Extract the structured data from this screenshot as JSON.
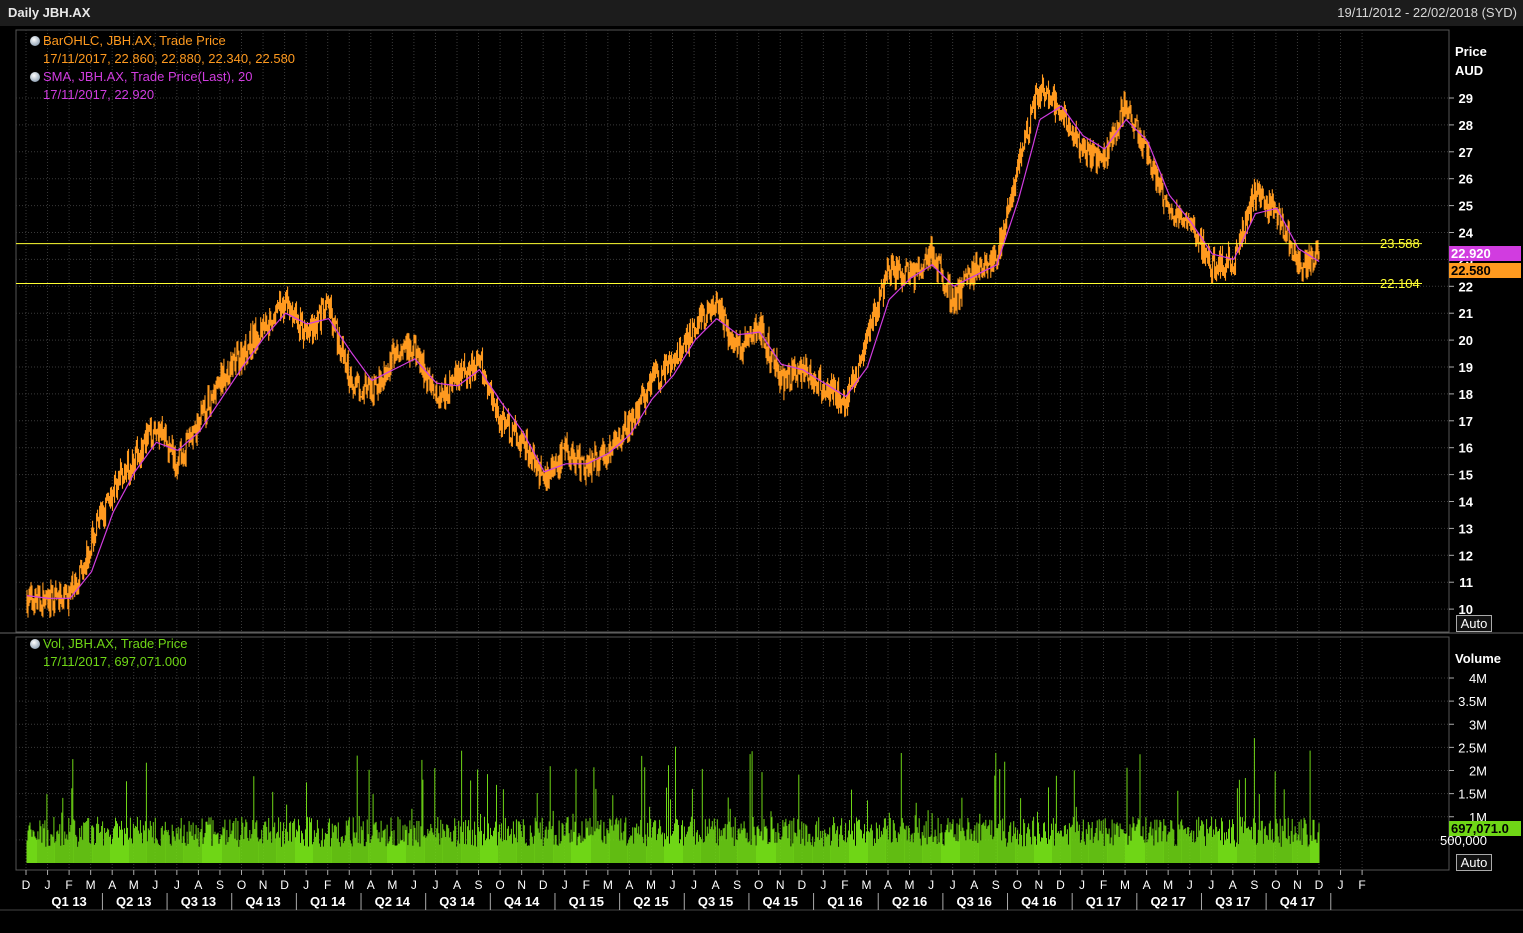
{
  "header": {
    "title": "Daily JBH.AX",
    "range": "19/11/2012 - 22/02/2018 (SYD)"
  },
  "legend_price": {
    "ohlc_label": "BarOHLC, JBH.AX, Trade Price",
    "ohlc_values": "17/11/2017, 22.860, 22.880, 22.340, 22.580",
    "sma_label": "SMA, JBH.AX, Trade Price(Last),  20",
    "sma_values": "17/11/2017, 22.920"
  },
  "legend_volume": {
    "label": "Vol, JBH.AX, Trade Price",
    "values": "17/11/2017, 697,071.000"
  },
  "axes": {
    "price_title_1": "Price",
    "price_title_2": "AUD",
    "volume_title": "Volume",
    "auto_label": "Auto"
  },
  "tags": {
    "sma": "22.920",
    "last": "22.580",
    "volume": "697,071.0"
  },
  "lines": {
    "upper": "23.588",
    "lower": "22.104"
  },
  "colors": {
    "price": "#ff9a1f",
    "sma": "#d13ce0",
    "volume": "#6fd616",
    "hline": "#ffff33",
    "grid": "#3a3a3a"
  },
  "chart_data": {
    "type": "line",
    "price": {
      "ylim": [
        10,
        30
      ],
      "ticks": [
        10,
        11,
        12,
        13,
        14,
        15,
        16,
        17,
        18,
        19,
        20,
        21,
        22,
        23,
        24,
        25,
        26,
        27,
        28,
        29
      ],
      "x_months_index": [
        0,
        1,
        2,
        3,
        4,
        5,
        6,
        7,
        8,
        9,
        10,
        11,
        12,
        13,
        14,
        15,
        16,
        17,
        18,
        19,
        20,
        21,
        22,
        23,
        24,
        25,
        26,
        27,
        28,
        29,
        30,
        31,
        32,
        33,
        34,
        35,
        36,
        37,
        38,
        39,
        40,
        41,
        42,
        43,
        44,
        45,
        46,
        47,
        48,
        49,
        50,
        51,
        52,
        53,
        54,
        55,
        56,
        57,
        58,
        59,
        60
      ],
      "close": [
        10.4,
        10.3,
        10.5,
        12.5,
        14.5,
        15.6,
        16.8,
        15.5,
        17.0,
        18.5,
        19.5,
        20.6,
        21.4,
        20.2,
        21.3,
        18.5,
        18.0,
        19.4,
        19.6,
        17.9,
        18.6,
        19.2,
        17.0,
        16.2,
        14.8,
        15.8,
        15.3,
        16.0,
        16.9,
        18.5,
        19.1,
        20.6,
        21.2,
        19.7,
        20.5,
        18.5,
        18.9,
        18.2,
        17.8,
        20.0,
        22.6,
        22.3,
        23.2,
        21.4,
        22.6,
        23.0,
        26.5,
        29.4,
        28.6,
        27.0,
        26.8,
        28.8,
        26.8,
        24.8,
        24.2,
        22.7,
        23.0,
        25.5,
        24.7,
        22.8,
        23.2
      ],
      "sma": [
        10.5,
        10.4,
        10.4,
        11.4,
        13.6,
        15.1,
        16.2,
        15.9,
        16.6,
        17.8,
        19.0,
        20.1,
        21.0,
        20.6,
        20.8,
        19.6,
        18.5,
        18.9,
        19.3,
        18.4,
        18.3,
        18.9,
        17.7,
        16.6,
        15.1,
        15.4,
        15.4,
        15.8,
        16.5,
        17.8,
        18.7,
        20.0,
        20.8,
        20.2,
        20.3,
        19.1,
        18.9,
        18.4,
        17.9,
        19.0,
        21.5,
        22.3,
        22.8,
        22.0,
        22.4,
        22.8,
        25.2,
        28.2,
        28.7,
        27.6,
        27.1,
        28.2,
        27.4,
        25.4,
        24.4,
        23.2,
        23.0,
        24.7,
        24.9,
        23.4,
        22.9
      ],
      "last": 22.58,
      "sma_last": 22.92,
      "hlines": [
        23.588,
        22.104
      ]
    },
    "volume": {
      "ticks": [
        "500,000",
        "1M",
        "1.5M",
        "2M",
        "2.5M",
        "3M",
        "3.5M",
        "4M"
      ],
      "tick_values": [
        500000,
        1000000,
        1500000,
        2000000,
        2500000,
        3000000,
        3500000,
        4000000
      ],
      "ylim": [
        0,
        4400000
      ],
      "last": 697071
    },
    "x_months": [
      "D",
      "J",
      "F",
      "M",
      "A",
      "M",
      "J",
      "J",
      "A",
      "S",
      "O",
      "N",
      "D",
      "J",
      "F",
      "M",
      "A",
      "M",
      "J",
      "J",
      "A",
      "S",
      "O",
      "N",
      "D",
      "J",
      "F",
      "M",
      "A",
      "M",
      "J",
      "J",
      "A",
      "S",
      "O",
      "N",
      "D",
      "J",
      "F",
      "M",
      "A",
      "M",
      "J",
      "J",
      "A",
      "S",
      "O",
      "N",
      "D",
      "J",
      "F",
      "M",
      "A",
      "M",
      "J",
      "J",
      "A",
      "S",
      "O",
      "N",
      "D",
      "J",
      "F"
    ],
    "quarters": [
      "Q1 13",
      "Q2 13",
      "Q3 13",
      "Q4 13",
      "Q1 14",
      "Q2 14",
      "Q3 14",
      "Q4 14",
      "Q1 15",
      "Q2 15",
      "Q3 15",
      "Q4 15",
      "Q1 16",
      "Q2 16",
      "Q3 16",
      "Q4 16",
      "Q1 17",
      "Q2 17",
      "Q3 17",
      "Q4 17"
    ]
  }
}
